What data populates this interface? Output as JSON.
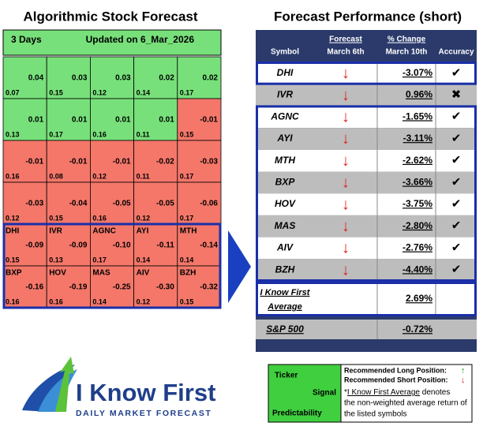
{
  "left": {
    "title": "Algorithmic Stock Forecast",
    "horizon": "3 Days",
    "updated": "Updated on 6_Mar_2026",
    "cells": [
      [
        {
          "signal": "0.04",
          "pred": "0.07"
        },
        {
          "signal": "0.03",
          "pred": "0.15"
        },
        {
          "signal": "0.03",
          "pred": "0.12"
        },
        {
          "signal": "0.02",
          "pred": "0.14"
        },
        {
          "signal": "0.02",
          "pred": "0.17"
        }
      ],
      [
        {
          "signal": "0.01",
          "pred": "0.13"
        },
        {
          "signal": "0.01",
          "pred": "0.17"
        },
        {
          "signal": "0.01",
          "pred": "0.16"
        },
        {
          "signal": "0.01",
          "pred": "0.11"
        },
        {
          "signal": "-0.01",
          "pred": "0.15"
        }
      ],
      [
        {
          "signal": "-0.01",
          "pred": "0.16"
        },
        {
          "signal": "-0.01",
          "pred": "0.08"
        },
        {
          "signal": "-0.01",
          "pred": "0.12"
        },
        {
          "signal": "-0.02",
          "pred": "0.11"
        },
        {
          "signal": "-0.03",
          "pred": "0.17"
        }
      ],
      [
        {
          "signal": "-0.03",
          "pred": "0.12"
        },
        {
          "signal": "-0.04",
          "pred": "0.15"
        },
        {
          "signal": "-0.05",
          "pred": "0.16"
        },
        {
          "signal": "-0.05",
          "pred": "0.12"
        },
        {
          "signal": "-0.06",
          "pred": "0.17"
        }
      ],
      [
        {
          "symbol": "DHI",
          "signal": "-0.09",
          "pred": "0.15"
        },
        {
          "symbol": "IVR",
          "signal": "-0.09",
          "pred": "0.13"
        },
        {
          "symbol": "AGNC",
          "signal": "-0.10",
          "pred": "0.17"
        },
        {
          "symbol": "AYI",
          "signal": "-0.11",
          "pred": "0.14"
        },
        {
          "symbol": "MTH",
          "signal": "-0.14",
          "pred": "0.14"
        }
      ],
      [
        {
          "symbol": "BXP",
          "signal": "-0.16",
          "pred": "0.16"
        },
        {
          "symbol": "HOV",
          "signal": "-0.19",
          "pred": "0.16"
        },
        {
          "symbol": "MAS",
          "signal": "-0.25",
          "pred": "0.14"
        },
        {
          "symbol": "AIV",
          "signal": "-0.30",
          "pred": "0.12"
        },
        {
          "symbol": "BZH",
          "signal": "-0.32",
          "pred": "0.15"
        }
      ]
    ]
  },
  "right": {
    "title": "Forecast Performance (short)",
    "headers": {
      "symbol": "Symbol",
      "forecast": "Forecast",
      "forecast_date": "March 6th",
      "change": "% Change",
      "change_date": "March 10th",
      "accuracy": "Accuracy"
    },
    "rows": [
      {
        "symbol": "DHI",
        "forecast": "↓",
        "change": "-3.07%",
        "accuracy": "✔"
      },
      {
        "symbol": "IVR",
        "forecast": "↓",
        "change": "0.96%",
        "accuracy": "✖"
      },
      {
        "symbol": "AGNC",
        "forecast": "↓",
        "change": "-1.65%",
        "accuracy": "✔"
      },
      {
        "symbol": "AYI",
        "forecast": "↓",
        "change": "-3.11%",
        "accuracy": "✔"
      },
      {
        "symbol": "MTH",
        "forecast": "↓",
        "change": "-2.62%",
        "accuracy": "✔"
      },
      {
        "symbol": "BXP",
        "forecast": "↓",
        "change": "-3.66%",
        "accuracy": "✔"
      },
      {
        "symbol": "HOV",
        "forecast": "↓",
        "change": "-3.75%",
        "accuracy": "✔"
      },
      {
        "symbol": "MAS",
        "forecast": "↓",
        "change": "-2.80%",
        "accuracy": "✔"
      },
      {
        "symbol": "AIV",
        "forecast": "↓",
        "change": "-2.76%",
        "accuracy": "✔"
      },
      {
        "symbol": "BZH",
        "forecast": "↓",
        "change": "-4.40%",
        "accuracy": "✔"
      }
    ],
    "average": {
      "label_1": "I Know First",
      "label_2": "Average",
      "change": "2.69%"
    },
    "benchmark": {
      "label": "S&P 500",
      "change": "-0.72%"
    }
  },
  "legend": {
    "ticker": "Ticker",
    "signal": "Signal",
    "predictability": "Predictability",
    "long": "Recommended Long Position:",
    "long_icon": "↑",
    "short": "Recommended Short Position:",
    "short_icon": "↓",
    "note_star": "*",
    "note_link": "I Know First Average",
    "note_1": " denotes",
    "note_2": "the non-weighted average return of",
    "note_3": "the listed symbols"
  },
  "logo": {
    "name": "I Know First",
    "tagline": "DAILY MARKET FORECAST"
  }
}
